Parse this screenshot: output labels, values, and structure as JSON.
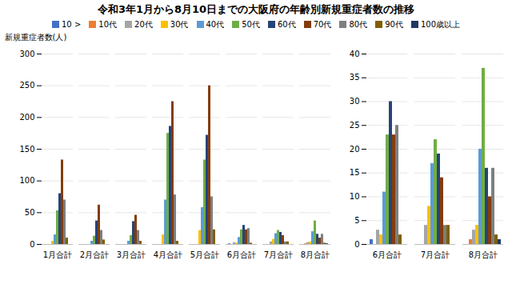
{
  "chart_data": [
    {
      "type": "bar",
      "title": "令和3年1月から8月10日までの大阪府の年齢別新規重症者数の推移",
      "y_label": "新規重症者数(人)",
      "categories": [
        "1月合計",
        "2月合計",
        "3月合計",
        "4月合計",
        "5月合計",
        "6月合計",
        "7月合計",
        "8月合計"
      ],
      "series": [
        {
          "name": "10 >",
          "color": "#4472C4",
          "values": [
            0,
            0,
            0,
            0,
            0,
            1,
            0,
            0
          ]
        },
        {
          "name": "10代",
          "color": "#ED7D31",
          "values": [
            0,
            0,
            0,
            0,
            0,
            0,
            0,
            1
          ]
        },
        {
          "name": "20代",
          "color": "#A5A5A5",
          "values": [
            0,
            0,
            0,
            0,
            0,
            3,
            4,
            3
          ]
        },
        {
          "name": "30代",
          "color": "#FFC000",
          "values": [
            5,
            0,
            0,
            15,
            22,
            2,
            8,
            4
          ]
        },
        {
          "name": "40代",
          "color": "#5B9BD5",
          "values": [
            15,
            5,
            5,
            70,
            58,
            11,
            17,
            20
          ]
        },
        {
          "name": "50代",
          "color": "#70AD47",
          "values": [
            53,
            13,
            14,
            175,
            133,
            23,
            22,
            37
          ]
        },
        {
          "name": "60代",
          "color": "#264478",
          "values": [
            80,
            37,
            36,
            186,
            172,
            30,
            19,
            16
          ]
        },
        {
          "name": "70代",
          "color": "#843C0C",
          "values": [
            133,
            62,
            46,
            225,
            250,
            23,
            14,
            10
          ]
        },
        {
          "name": "80代",
          "color": "#7F7F7F",
          "values": [
            70,
            22,
            22,
            78,
            75,
            25,
            4,
            16
          ]
        },
        {
          "name": "90代",
          "color": "#7F6000",
          "values": [
            10,
            7,
            5,
            5,
            23,
            2,
            4,
            2
          ]
        },
        {
          "name": "100歳以上",
          "color": "#1F3864",
          "values": [
            0,
            0,
            0,
            0,
            0,
            0,
            0,
            1
          ]
        }
      ],
      "ylim": [
        0,
        300
      ],
      "yticks": [
        0,
        50,
        100,
        150,
        200,
        250,
        300
      ],
      "grid": true,
      "legend": "top"
    },
    {
      "type": "bar",
      "categories": [
        "6月合計",
        "7月合計",
        "8月合計"
      ],
      "series": [
        {
          "name": "10 >",
          "color": "#4472C4",
          "values": [
            1,
            0,
            0
          ]
        },
        {
          "name": "10代",
          "color": "#ED7D31",
          "values": [
            0,
            0,
            1
          ]
        },
        {
          "name": "20代",
          "color": "#A5A5A5",
          "values": [
            3,
            4,
            3
          ]
        },
        {
          "name": "30代",
          "color": "#FFC000",
          "values": [
            2,
            8,
            4
          ]
        },
        {
          "name": "40代",
          "color": "#5B9BD5",
          "values": [
            11,
            17,
            20
          ]
        },
        {
          "name": "50代",
          "color": "#70AD47",
          "values": [
            23,
            22,
            37
          ]
        },
        {
          "name": "60代",
          "color": "#264478",
          "values": [
            30,
            19,
            16
          ]
        },
        {
          "name": "70代",
          "color": "#843C0C",
          "values": [
            23,
            14,
            10
          ]
        },
        {
          "name": "80代",
          "color": "#7F7F7F",
          "values": [
            25,
            4,
            16
          ]
        },
        {
          "name": "90代",
          "color": "#7F6000",
          "values": [
            2,
            4,
            2
          ]
        },
        {
          "name": "100歳以上",
          "color": "#1F3864",
          "values": [
            0,
            0,
            1
          ]
        }
      ],
      "ylim": [
        0,
        40
      ],
      "yticks": [
        0,
        5,
        10,
        15,
        20,
        25,
        30,
        35,
        40
      ],
      "grid": true
    }
  ]
}
